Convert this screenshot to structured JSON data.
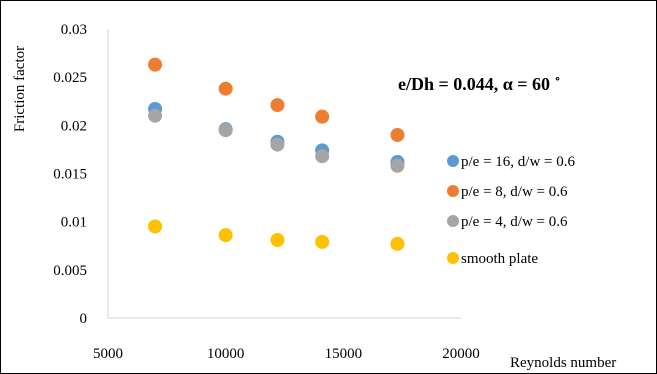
{
  "chart_data": {
    "type": "scatter",
    "title": "",
    "annotation": "e/Dh = 0.044, α = 60 ˚",
    "xlabel": "Reynolds number",
    "ylabel": "Friction factor",
    "xlim": [
      5000,
      20000
    ],
    "ylim": [
      0,
      0.03
    ],
    "x_ticks": [
      5000,
      10000,
      15000,
      20000
    ],
    "x_tick_labels": [
      "5000",
      "10000",
      "15000",
      "20000"
    ],
    "y_ticks": [
      0,
      0.005,
      0.01,
      0.015,
      0.02,
      0.025,
      0.03
    ],
    "y_tick_labels": [
      "0",
      "0.005",
      "0.01",
      "0.015",
      "0.02",
      "0.025",
      "0.03"
    ],
    "grid": false,
    "legend_position": "right",
    "series": [
      {
        "name": "p/e = 16, d/w = 0.6",
        "color": "#5B9BD5",
        "x": [
          7000,
          10000,
          12200,
          14100,
          17300
        ],
        "y": [
          0.0217,
          0.0196,
          0.0183,
          0.0174,
          0.0162
        ]
      },
      {
        "name": "p/e = 8, d/w = 0.6",
        "color": "#ED7D31",
        "x": [
          7000,
          10000,
          12200,
          14100,
          17300
        ],
        "y": [
          0.0263,
          0.0238,
          0.0221,
          0.0209,
          0.019
        ]
      },
      {
        "name": "p/e = 4, d/w = 0.6",
        "color": "#A5A5A5",
        "x": [
          7000,
          10000,
          12200,
          14100,
          17300
        ],
        "y": [
          0.021,
          0.0195,
          0.018,
          0.0168,
          0.0158
        ]
      },
      {
        "name": "smooth plate",
        "color": "#FFC000",
        "x": [
          7000,
          10000,
          12200,
          14100,
          17300
        ],
        "y": [
          0.0095,
          0.0086,
          0.0081,
          0.0079,
          0.0077
        ]
      }
    ]
  }
}
